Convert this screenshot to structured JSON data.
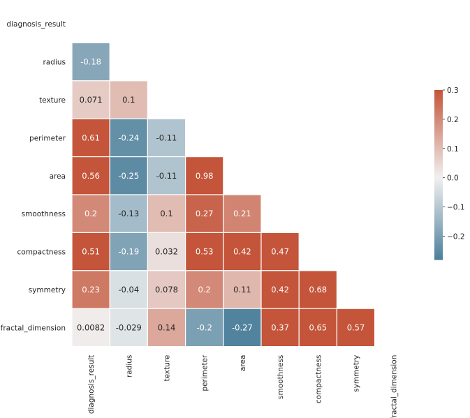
{
  "chart_data": {
    "type": "heatmap",
    "title": "",
    "xlabel": "",
    "ylabel": "",
    "mask": "upper-triangle-including-diagonal",
    "variables": [
      "diagnosis_result",
      "radius",
      "texture",
      "perimeter",
      "area",
      "smoothness",
      "compactness",
      "symmetry",
      "fractal_dimension"
    ],
    "x_tick_labels": [
      "diagnosis_result",
      "radius",
      "texture",
      "perimeter",
      "area",
      "smoothness",
      "compactness",
      "symmetry",
      "fractal_dimension"
    ],
    "y_tick_labels": [
      "diagnosis_result",
      "radius",
      "texture",
      "perimeter",
      "area",
      "smoothness",
      "compactness",
      "symmetry",
      "fractal_dimension"
    ],
    "values": [
      [
        null,
        null,
        null,
        null,
        null,
        null,
        null,
        null,
        null
      ],
      [
        -0.18,
        null,
        null,
        null,
        null,
        null,
        null,
        null,
        null
      ],
      [
        0.071,
        0.1,
        null,
        null,
        null,
        null,
        null,
        null,
        null
      ],
      [
        0.61,
        -0.24,
        -0.11,
        null,
        null,
        null,
        null,
        null,
        null
      ],
      [
        0.56,
        -0.25,
        -0.11,
        0.98,
        null,
        null,
        null,
        null,
        null
      ],
      [
        0.2,
        -0.13,
        0.1,
        0.27,
        0.21,
        null,
        null,
        null,
        null
      ],
      [
        0.51,
        -0.19,
        0.032,
        0.53,
        0.42,
        0.47,
        null,
        null,
        null
      ],
      [
        0.23,
        -0.04,
        0.078,
        0.2,
        0.11,
        0.42,
        0.68,
        null,
        null
      ],
      [
        0.0082,
        -0.029,
        0.14,
        -0.2,
        -0.27,
        0.37,
        0.65,
        0.57,
        null
      ]
    ],
    "cell_labels": [
      [
        null,
        null,
        null,
        null,
        null,
        null,
        null,
        null,
        null
      ],
      [
        "-0.18",
        null,
        null,
        null,
        null,
        null,
        null,
        null,
        null
      ],
      [
        "0.071",
        "0.1",
        null,
        null,
        null,
        null,
        null,
        null,
        null
      ],
      [
        "0.61",
        "-0.24",
        "-0.11",
        null,
        null,
        null,
        null,
        null,
        null
      ],
      [
        "0.56",
        "-0.25",
        "-0.11",
        "0.98",
        null,
        null,
        null,
        null,
        null
      ],
      [
        "0.2",
        "-0.13",
        "0.1",
        "0.27",
        "0.21",
        null,
        null,
        null,
        null
      ],
      [
        "0.51",
        "-0.19",
        "0.032",
        "0.53",
        "0.42",
        "0.47",
        null,
        null,
        null
      ],
      [
        "0.23",
        "-0.04",
        "0.078",
        "0.2",
        "0.11",
        "0.42",
        "0.68",
        null,
        null
      ],
      [
        "0.0082",
        "-0.029",
        "0.14",
        "-0.2",
        "-0.27",
        "0.37",
        "0.65",
        "0.57",
        null
      ]
    ],
    "colorbar": {
      "vmin": -0.28,
      "vmax": 0.3,
      "center": 0,
      "ticks": [
        -0.2,
        -0.1,
        0.0,
        0.1,
        0.2,
        0.3
      ],
      "tick_labels": [
        "−0.2",
        "−0.1",
        "0.0",
        "0.1",
        "0.2",
        "0.3"
      ]
    },
    "colors": {
      "low": "#4c7f9b",
      "center": "#f0f0f0",
      "high": "#c4553a",
      "cell_border": "#ffffff",
      "text_dark": "#262626",
      "text_light": "#ffffff"
    }
  }
}
